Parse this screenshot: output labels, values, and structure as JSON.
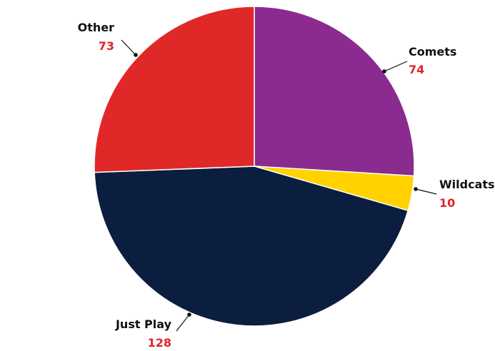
{
  "chart_data": {
    "type": "pie",
    "slices": [
      {
        "label": "Comets",
        "value": 74,
        "color": "#8b2a8f"
      },
      {
        "label": "Wildcats",
        "value": 10,
        "color": "#ffd200"
      },
      {
        "label": "Just Play",
        "value": 128,
        "color": "#0b1e3f"
      },
      {
        "label": "Other",
        "value": 73,
        "color": "#e02828"
      }
    ],
    "start_angle_deg": 0,
    "direction": "clockwise",
    "legend": "none"
  }
}
